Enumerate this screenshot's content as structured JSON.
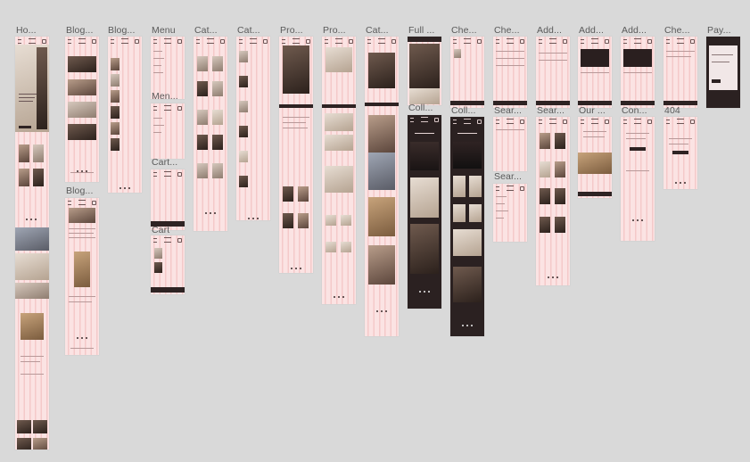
{
  "canvas": {
    "background": "#d9d9d9",
    "frame_fill": "#fbe3e3",
    "grid_stripe": "#f4c9c9",
    "dark_fill": "#2b2121"
  },
  "frames": [
    {
      "id": "home",
      "label": "Ho..."
    },
    {
      "id": "blog-1",
      "label": "Blog..."
    },
    {
      "id": "blog-2",
      "label": "Blog..."
    },
    {
      "id": "blog-3",
      "label": "Blog..."
    },
    {
      "id": "menu",
      "label": "Menu"
    },
    {
      "id": "menu-2",
      "label": "Men..."
    },
    {
      "id": "cart-1",
      "label": "Cart..."
    },
    {
      "id": "cart-2",
      "label": "Cart"
    },
    {
      "id": "cat-1",
      "label": "Cat..."
    },
    {
      "id": "cat-2",
      "label": "Cat..."
    },
    {
      "id": "pro-1",
      "label": "Pro..."
    },
    {
      "id": "pro-2",
      "label": "Pro..."
    },
    {
      "id": "cat-3",
      "label": "Cat..."
    },
    {
      "id": "full",
      "label": "Full ..."
    },
    {
      "id": "coll-1",
      "label": "Coll..."
    },
    {
      "id": "che-1",
      "label": "Che..."
    },
    {
      "id": "coll-2",
      "label": "Coll..."
    },
    {
      "id": "che-2",
      "label": "Che..."
    },
    {
      "id": "sear-1",
      "label": "Sear..."
    },
    {
      "id": "sear-2",
      "label": "Sear..."
    },
    {
      "id": "add-1",
      "label": "Add..."
    },
    {
      "id": "sear-3",
      "label": "Sear..."
    },
    {
      "id": "add-2",
      "label": "Add..."
    },
    {
      "id": "our",
      "label": "Our ..."
    },
    {
      "id": "add-3",
      "label": "Add..."
    },
    {
      "id": "con",
      "label": "Con..."
    },
    {
      "id": "che-3",
      "label": "Che..."
    },
    {
      "id": "404",
      "label": "404"
    },
    {
      "id": "pay",
      "label": "Pay..."
    }
  ]
}
